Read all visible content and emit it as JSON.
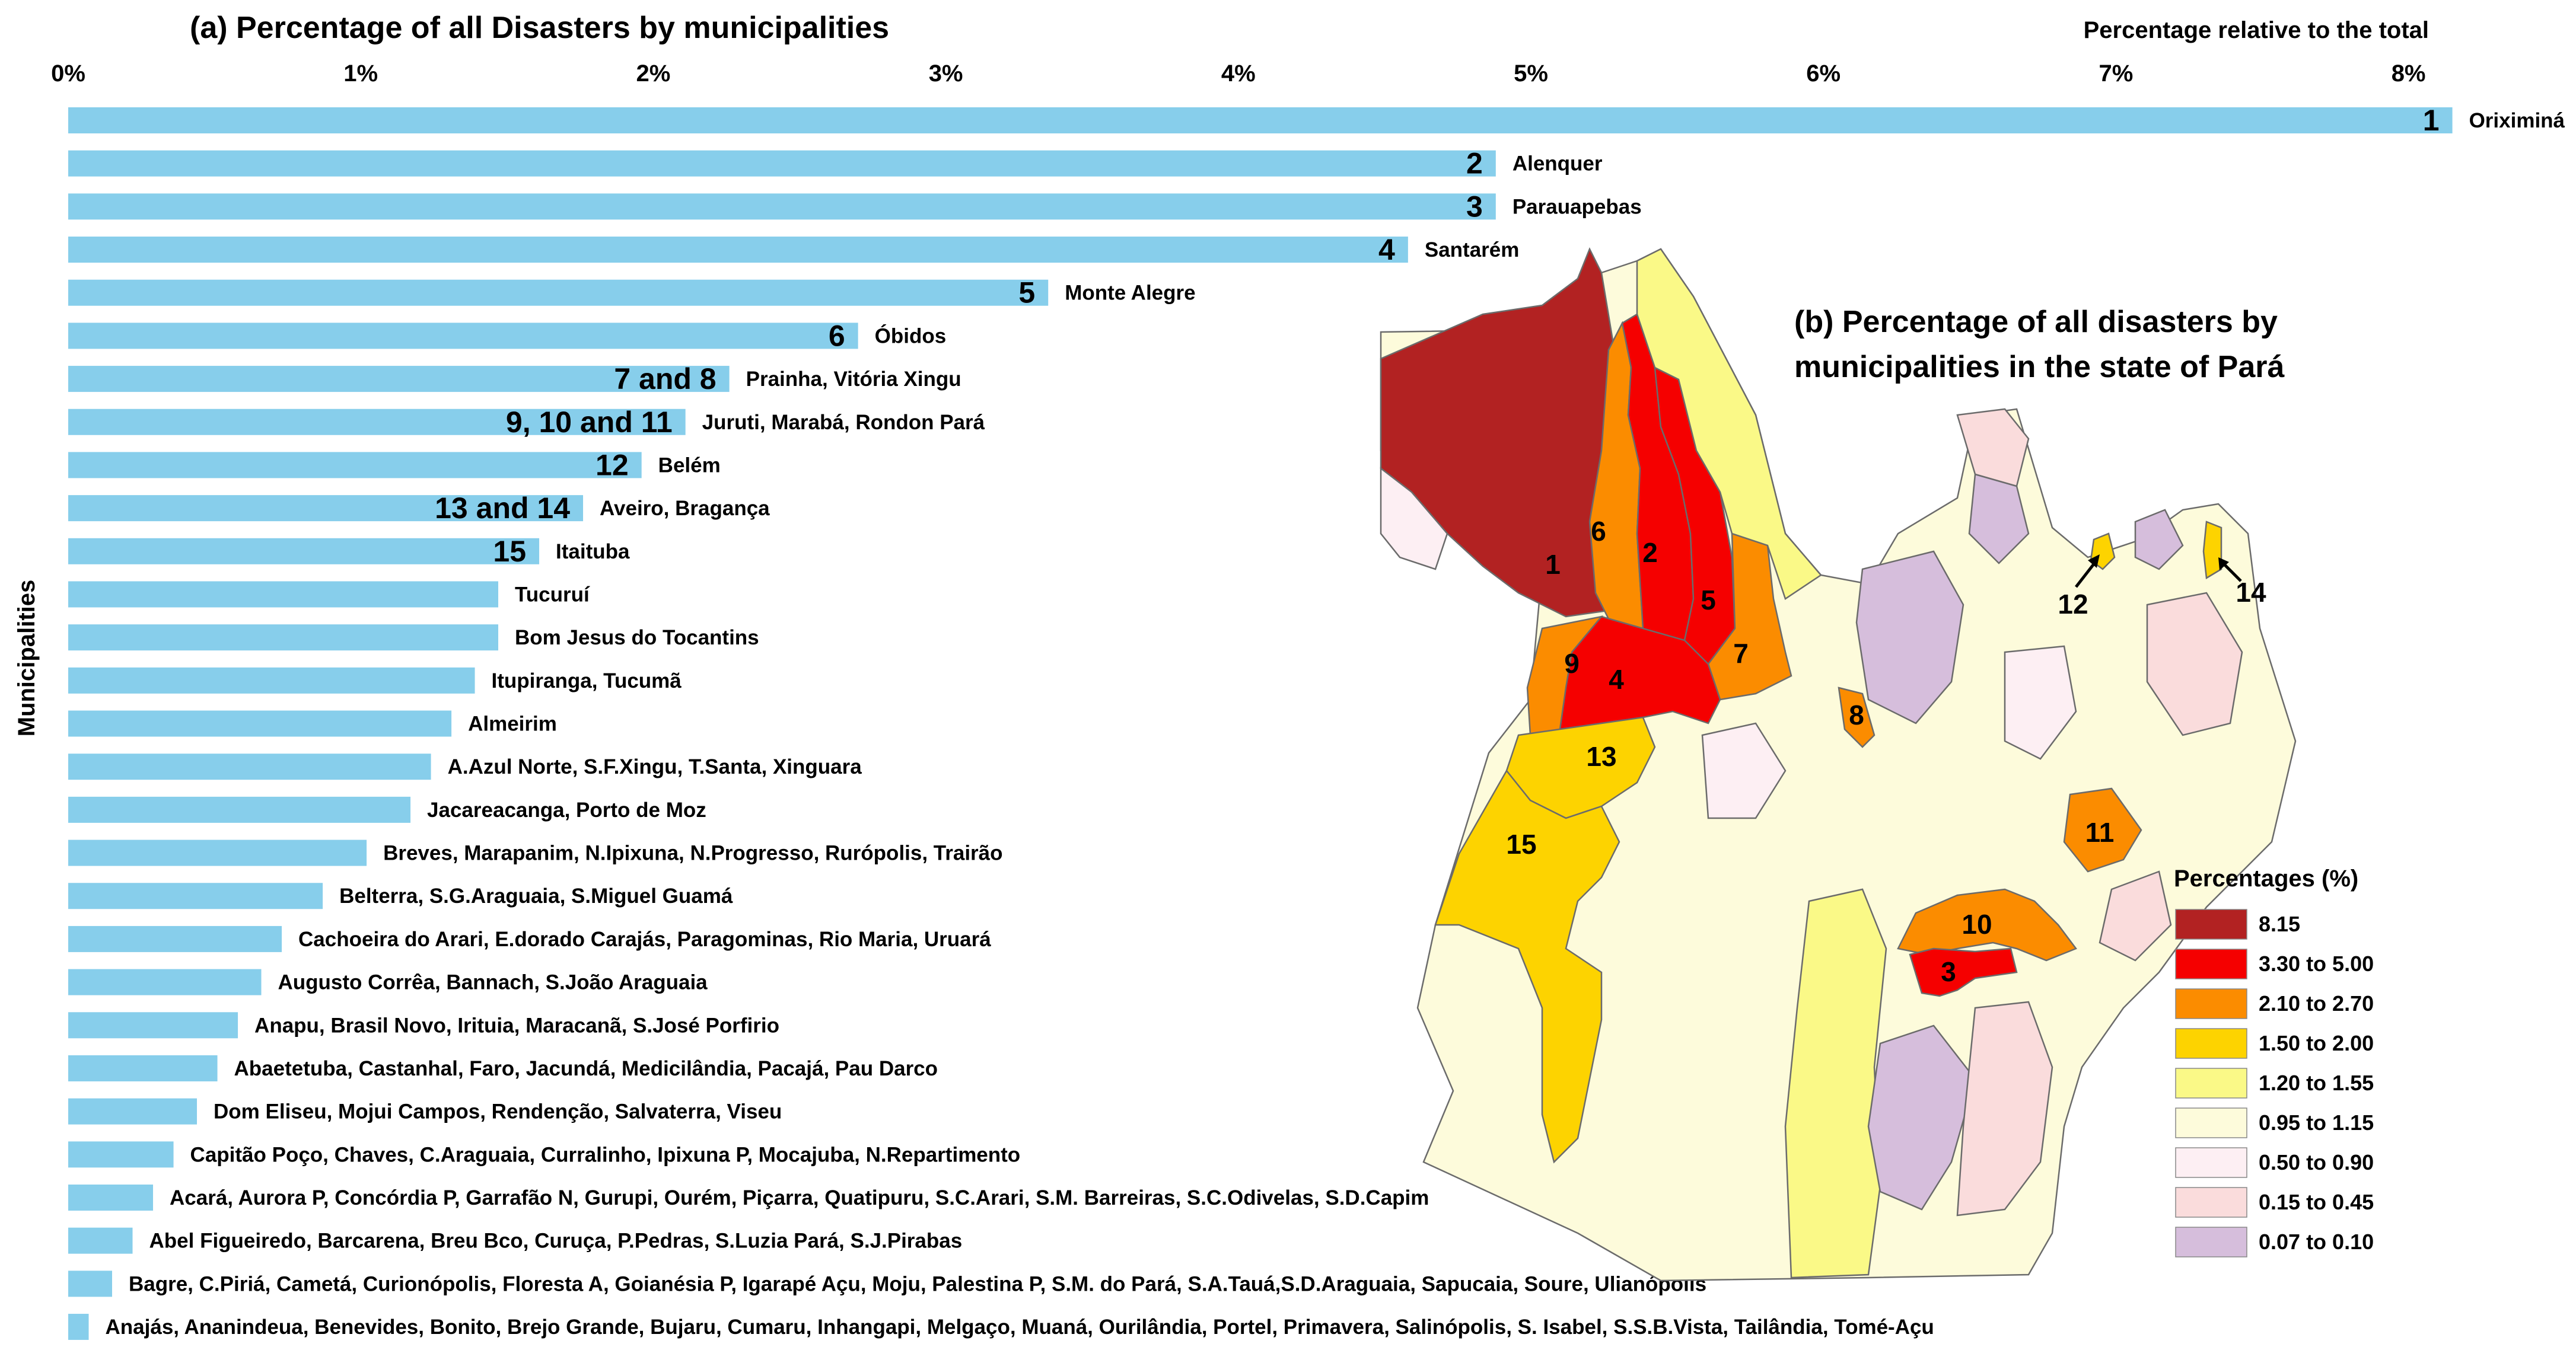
{
  "chart_data": [
    {
      "type": "bar",
      "orientation": "horizontal",
      "title": "(a) Percentage of all Disasters by municipalities",
      "xlabel": "Percentage relative to the total",
      "ylabel": "Municipalities",
      "xlim": [
        0,
        8.2
      ],
      "xticks": [
        "0%",
        "1%",
        "2%",
        "3%",
        "4%",
        "5%",
        "6%",
        "7%",
        "8%"
      ],
      "bar_color": "#87CEEB",
      "categories": [
        "Oriximiná",
        "Alenquer",
        "Parauapebas",
        "Santarém",
        "Monte Alegre",
        "Óbidos",
        "Prainha, Vitória Xingu",
        "Juruti, Marabá, Rondon Pará",
        "Belém",
        "Aveiro, Bragança",
        "Itaituba",
        "Tucuruí",
        "Bom Jesus do Tocantins",
        "Itupiranga, Tucumã",
        "Almeirim",
        "A.Azul Norte, S.F.Xingu, T.Santa, Xinguara",
        "Jacareacanga, Porto de Moz",
        "Breves, Marapanim, N.Ipixuna, N.Progresso, Rurópolis, Trairão",
        "Belterra, S.G.Araguaia, S.Miguel Guamá",
        "Cachoeira do Arari, E.dorado Carajás, Paragominas, Rio Maria, Uruará",
        "Augusto Corrêa, Bannach, S.João Araguaia",
        "Anapu, Brasil Novo, Irituia, Maracanã, S.José Porfirio",
        "Abaetetuba, Castanhal, Faro, Jacundá, Medicilândia, Pacajá, Pau Darco",
        "Dom Eliseu, Mojui Campos, Rendenção, Salvaterra, Viseu",
        "Capitão Poço, Chaves, C.Araguaia, Curralinho, Ipixuna P, Mocajuba, N.Repartimento",
        "Acará, Aurora P, Concórdia P, Garrafão N, Gurupi, Ourém, Piçarra, Quatipuru, S.C.Arari, S.M. Barreiras, S.C.Odivelas, S.D.Capim",
        "Abel Figueiredo, Barcarena, Breu Bco, Curuça, P.Pedras, S.Luzia Pará, S.J.Pirabas",
        "Bagre, C.Piriá, Cametá, Curionópolis, Floresta A, Goianésia P, Igarapé Açu, Moju, Palestina P, S.M. do Pará, S.A.Tauá,S.D.Araguaia, Sapucaia, Soure, Ulianópolis",
        "Anajás, Ananindeua, Benevides, Bonito, Brejo Grande, Bujaru, Cumaru, Inhangapi, Melgaço, Muaná, Ourilândia, Portel, Primavera, Salinópolis, S. Isabel, S.S.B.Vista, Tailândia, Tomé-Açu"
      ],
      "values": [
        8.15,
        4.88,
        4.88,
        4.58,
        3.35,
        2.7,
        2.26,
        2.11,
        1.96,
        1.76,
        1.61,
        1.47,
        1.47,
        1.39,
        1.31,
        1.24,
        1.17,
        1.02,
        0.87,
        0.73,
        0.66,
        0.58,
        0.51,
        0.44,
        0.36,
        0.29,
        0.22,
        0.15,
        0.07
      ],
      "rank_labels": [
        "1",
        "2",
        "3",
        "4",
        "5",
        "6",
        "7  and  8",
        "9, 10 and 11",
        "12",
        "13  and  14",
        "15",
        "",
        "",
        "",
        "",
        "",
        "",
        "",
        "",
        "",
        "",
        "",
        "",
        "",
        "",
        "",
        "",
        "",
        ""
      ]
    },
    {
      "type": "map",
      "title_line1": "(b)  Percentage of all disasters by",
      "title_line2": "municipalities in the state of Pará",
      "numbered_municipalities": [
        "1",
        "2",
        "3",
        "4",
        "5",
        "6",
        "7",
        "8",
        "9",
        "10",
        "11",
        "12",
        "13",
        "14",
        "15"
      ],
      "legend_title": "Percentages (%)",
      "legend": [
        {
          "label": "8.15",
          "color": "#B22222"
        },
        {
          "label": "3.30 to 5.00",
          "color": "#F50000"
        },
        {
          "label": "2.10 to 2.70",
          "color": "#FB8C00"
        },
        {
          "label": "1.50 to 2.00",
          "color": "#FDD300"
        },
        {
          "label": "1.20 to 1.55",
          "color": "#FAF987"
        },
        {
          "label": "0.95 to 1.15",
          "color": "#FDFBDB"
        },
        {
          "label": "0.50 to 0.90",
          "color": "#FDEFF3"
        },
        {
          "label": "0.15 to 0.45",
          "color": "#FADCDC"
        },
        {
          "label": "0.07 to 0.10",
          "color": "#D6BEDC"
        }
      ]
    }
  ]
}
